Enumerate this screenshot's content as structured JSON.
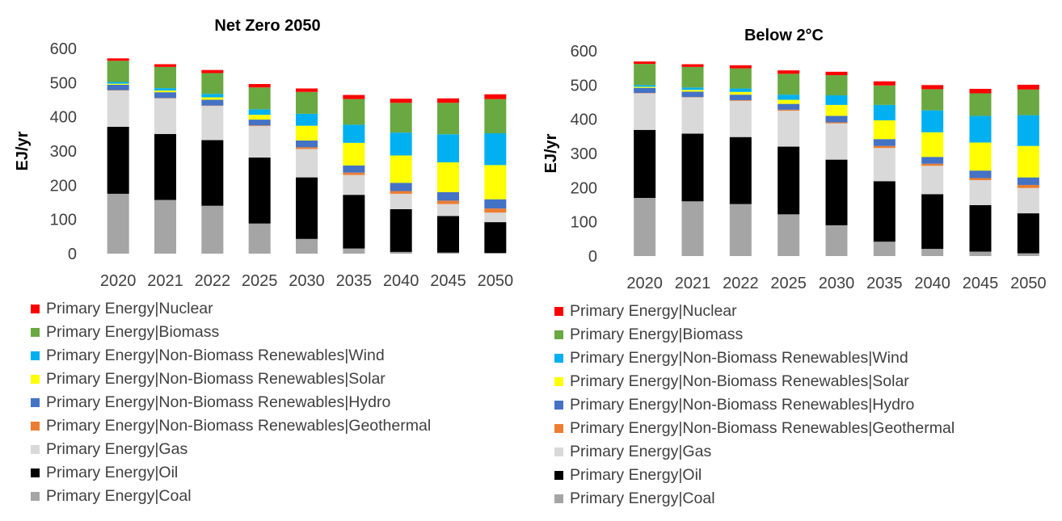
{
  "legend": [
    {
      "label": "Primary Energy|Nuclear",
      "color": "#ff0000"
    },
    {
      "label": "Primary Energy|Biomass",
      "color": "#6aa842"
    },
    {
      "label": "Primary Energy|Non-Biomass Renewables|Wind",
      "color": "#00b0f0"
    },
    {
      "label": "Primary Energy|Non-Biomass Renewables|Solar",
      "color": "#ffff00"
    },
    {
      "label": "Primary Energy|Non-Biomass Renewables|Hydro",
      "color": "#4472c4"
    },
    {
      "label": "Primary Energy|Non-Biomass Renewables|Geothermal",
      "color": "#ed7d31"
    },
    {
      "label": "Primary Energy|Gas",
      "color": "#d9d9d9"
    },
    {
      "label": "Primary Energy|Oil",
      "color": "#000000"
    },
    {
      "label": "Primary Energy|Coal",
      "color": "#a5a5a5"
    }
  ],
  "chart_data": [
    {
      "type": "bar",
      "stacked": true,
      "title": "Net Zero 2050",
      "ylabel": "EJ/yr",
      "xlabel": "",
      "ylim": [
        0,
        600
      ],
      "yticks": [
        0,
        100,
        200,
        300,
        400,
        500,
        600
      ],
      "categories": [
        "2020",
        "2021",
        "2022",
        "2025",
        "2030",
        "2035",
        "2040",
        "2045",
        "2050"
      ],
      "series": [
        {
          "name": "Primary Energy|Coal",
          "color": "#a5a5a5",
          "values": [
            175,
            157,
            140,
            88,
            43,
            15,
            5,
            3,
            2
          ]
        },
        {
          "name": "Primary Energy|Oil",
          "color": "#000000",
          "values": [
            196,
            193,
            192,
            193,
            180,
            157,
            125,
            107,
            90
          ]
        },
        {
          "name": "Primary Energy|Gas",
          "color": "#d9d9d9",
          "values": [
            106,
            104,
            100,
            92,
            83,
            58,
            45,
            35,
            28
          ]
        },
        {
          "name": "Primary Energy|Non-Biomass Renewables|Geothermal",
          "color": "#ed7d31",
          "values": [
            1,
            1,
            1,
            2,
            5,
            7,
            8,
            10,
            12
          ]
        },
        {
          "name": "Primary Energy|Non-Biomass Renewables|Hydro",
          "color": "#4472c4",
          "values": [
            16,
            17,
            17,
            17,
            20,
            21,
            24,
            25,
            27
          ]
        },
        {
          "name": "Primary Energy|Non-Biomass Renewables|Solar",
          "color": "#ffff00",
          "values": [
            3,
            5,
            7,
            14,
            43,
            66,
            80,
            87,
            100
          ]
        },
        {
          "name": "Primary Energy|Non-Biomass Renewables|Wind",
          "color": "#00b0f0",
          "values": [
            5,
            7,
            10,
            16,
            35,
            53,
            67,
            82,
            93
          ]
        },
        {
          "name": "Primary Energy|Biomass",
          "color": "#6aa842",
          "values": [
            62,
            62,
            61,
            64,
            64,
            75,
            87,
            92,
            100
          ]
        },
        {
          "name": "Primary Energy|Nuclear",
          "color": "#ff0000",
          "values": [
            7,
            8,
            9,
            10,
            10,
            12,
            12,
            13,
            14
          ]
        }
      ]
    },
    {
      "type": "bar",
      "stacked": true,
      "title": "Below 2°C",
      "ylabel": "EJ/yr",
      "xlabel": "",
      "ylim": [
        0,
        600
      ],
      "yticks": [
        0,
        100,
        200,
        300,
        400,
        500,
        600
      ],
      "categories": [
        "2020",
        "2021",
        "2022",
        "2025",
        "2030",
        "2035",
        "2040",
        "2045",
        "2050"
      ],
      "series": [
        {
          "name": "Primary Energy|Coal",
          "color": "#a5a5a5",
          "values": [
            170,
            160,
            152,
            122,
            90,
            42,
            21,
            13,
            8
          ]
        },
        {
          "name": "Primary Energy|Oil",
          "color": "#000000",
          "values": [
            199,
            198,
            196,
            198,
            192,
            177,
            160,
            136,
            117
          ]
        },
        {
          "name": "Primary Energy|Gas",
          "color": "#d9d9d9",
          "values": [
            107,
            106,
            106,
            105,
            106,
            97,
            83,
            73,
            74
          ]
        },
        {
          "name": "Primary Energy|Non-Biomass Renewables|Geothermal",
          "color": "#ed7d31",
          "values": [
            1,
            1,
            2,
            3,
            3,
            6,
            6,
            6,
            9
          ]
        },
        {
          "name": "Primary Energy|Non-Biomass Renewables|Hydro",
          "color": "#4472c4",
          "values": [
            15,
            16,
            16,
            17,
            19,
            20,
            20,
            22,
            22
          ]
        },
        {
          "name": "Primary Energy|Non-Biomass Renewables|Solar",
          "color": "#ffff00",
          "values": [
            3,
            5,
            8,
            12,
            32,
            55,
            72,
            82,
            92
          ]
        },
        {
          "name": "Primary Energy|Non-Biomass Renewables|Wind",
          "color": "#00b0f0",
          "values": [
            5,
            7,
            10,
            15,
            28,
            45,
            64,
            78,
            90
          ]
        },
        {
          "name": "Primary Energy|Biomass",
          "color": "#6aa842",
          "values": [
            62,
            60,
            59,
            61,
            59,
            57,
            62,
            66,
            75
          ]
        },
        {
          "name": "Primary Energy|Nuclear",
          "color": "#ff0000",
          "values": [
            7,
            8,
            9,
            10,
            10,
            12,
            12,
            13,
            14
          ]
        }
      ]
    }
  ]
}
